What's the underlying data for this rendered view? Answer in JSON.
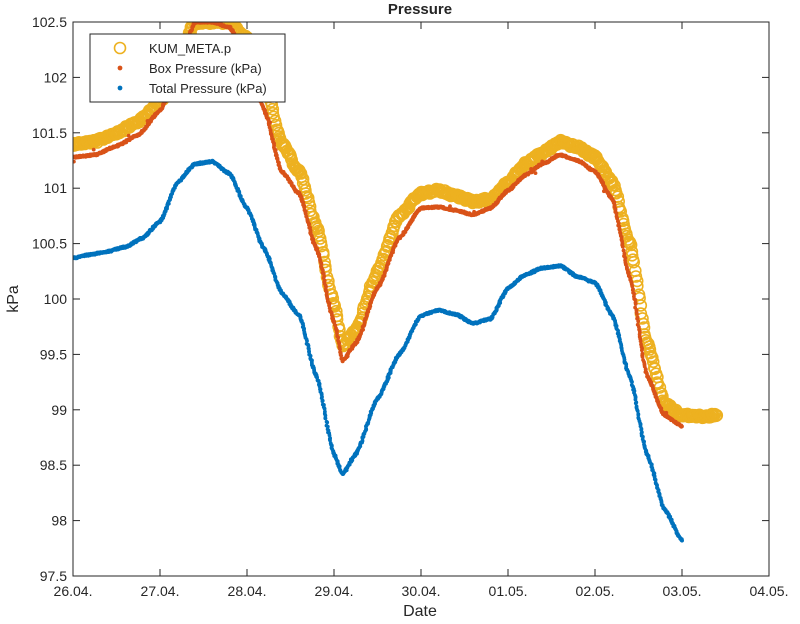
{
  "chart_data": {
    "type": "scatter",
    "title": "Pressure",
    "xlabel": "Date",
    "ylabel": "kPa",
    "x_unit": "day",
    "xlim": [
      "26.04.",
      "04.05."
    ],
    "ylim": [
      97.5,
      102.5
    ],
    "x_ticks": [
      "26.04.",
      "27.04.",
      "28.04.",
      "29.04.",
      "30.04.",
      "01.05.",
      "02.05.",
      "03.05.",
      "04.05."
    ],
    "y_ticks": [
      "97.5",
      "98",
      "98.5",
      "99",
      "99.5",
      "100",
      "100.5",
      "101",
      "101.5",
      "102",
      "102.5"
    ],
    "grid": false,
    "legend_position": "top-left",
    "series": [
      {
        "name": "KUM_META.p",
        "marker": "circle",
        "color": "#EDB120",
        "x": [
          "26.04. 00:00",
          "26.04. 06:00",
          "26.04. 12:00",
          "26.04. 18:00",
          "27.04. 00:00",
          "27.04. 04:48",
          "27.04. 09:36",
          "27.04. 14:24",
          "27.04. 19:12",
          "28.04. 00:00",
          "28.04. 04:48",
          "28.04. 09:36",
          "28.04. 14:24",
          "28.04. 19:12",
          "29.04. 00:00",
          "29.04. 02:24",
          "29.04. 06:00",
          "29.04. 12:00",
          "29.04. 18:00",
          "30.04. 00:00",
          "30.04. 04:48",
          "30.04. 09:36",
          "30.04. 14:24",
          "30.04. 19:12",
          "01.05. 00:00",
          "01.05. 04:48",
          "01.05. 09:36",
          "01.05. 14:24",
          "01.05. 19:12",
          "02.05. 00:00",
          "02.05. 04:48",
          "02.05. 09:36",
          "02.05. 14:24",
          "02.05. 19:12",
          "03.05. 00:00",
          "03.05. 06:00",
          "03.05. 09:36"
        ],
        "y": [
          101.4,
          101.42,
          101.5,
          101.6,
          101.78,
          102.1,
          102.5,
          102.5,
          102.5,
          102.35,
          101.95,
          101.4,
          101.15,
          100.65,
          99.95,
          99.58,
          99.72,
          100.25,
          100.75,
          100.95,
          100.98,
          100.93,
          100.88,
          100.9,
          101.05,
          101.22,
          101.32,
          101.42,
          101.37,
          101.28,
          101.05,
          100.5,
          99.6,
          99.05,
          98.95,
          98.94,
          98.95
        ]
      },
      {
        "name": "Box Pressure (kPa)",
        "marker": "dot",
        "color": "#D95319",
        "x": [
          "26.04. 00:00",
          "26.04. 06:00",
          "26.04. 12:00",
          "26.04. 18:00",
          "27.04. 00:00",
          "27.04. 04:48",
          "27.04. 09:36",
          "27.04. 14:24",
          "27.04. 19:12",
          "28.04. 00:00",
          "28.04. 04:48",
          "28.04. 09:36",
          "28.04. 14:24",
          "28.04. 19:12",
          "29.04. 00:00",
          "29.04. 02:24",
          "29.04. 06:00",
          "29.04. 12:00",
          "29.04. 18:00",
          "30.04. 00:00",
          "30.04. 04:48",
          "30.04. 09:36",
          "30.04. 14:24",
          "30.04. 19:12",
          "01.05. 00:00",
          "01.05. 04:48",
          "01.05. 09:36",
          "01.05. 14:24",
          "01.05. 19:12",
          "02.05. 00:00",
          "02.05. 04:48",
          "02.05. 09:36",
          "02.05. 14:24",
          "02.05. 19:12",
          "03.05. 00:00"
        ],
        "y": [
          101.28,
          101.3,
          101.38,
          101.48,
          101.7,
          102.05,
          102.5,
          102.5,
          102.45,
          102.2,
          101.7,
          101.15,
          100.95,
          100.45,
          99.8,
          99.44,
          99.6,
          100.1,
          100.55,
          100.82,
          100.83,
          100.8,
          100.76,
          100.82,
          100.98,
          101.12,
          101.22,
          101.3,
          101.25,
          101.15,
          100.9,
          100.2,
          99.3,
          98.95,
          98.85
        ]
      },
      {
        "name": "Total Pressure (kPa)",
        "marker": "dot",
        "color": "#0072BD",
        "x": [
          "26.04. 00:00",
          "26.04. 04:48",
          "26.04. 09:36",
          "26.04. 14:24",
          "26.04. 19:12",
          "27.04. 00:00",
          "27.04. 04:48",
          "27.04. 09:36",
          "27.04. 14:24",
          "27.04. 19:12",
          "28.04. 00:00",
          "28.04. 04:48",
          "28.04. 09:36",
          "28.04. 14:24",
          "28.04. 19:12",
          "29.04. 00:00",
          "29.04. 02:24",
          "29.04. 06:00",
          "29.04. 12:00",
          "29.04. 18:00",
          "30.04. 00:00",
          "30.04. 04:48",
          "30.04. 09:36",
          "30.04. 14:24",
          "30.04. 19:12",
          "01.05. 00:00",
          "01.05. 04:48",
          "01.05. 09:36",
          "01.05. 14:24",
          "01.05. 19:12",
          "02.05. 00:00",
          "02.05. 04:48",
          "02.05. 09:36",
          "02.05. 14:24",
          "02.05. 19:12",
          "03.05. 00:00"
        ],
        "y": [
          100.37,
          100.4,
          100.43,
          100.47,
          100.55,
          100.7,
          101.05,
          101.22,
          101.24,
          101.13,
          100.82,
          100.45,
          100.05,
          99.85,
          99.3,
          98.6,
          98.42,
          98.6,
          99.1,
          99.5,
          99.85,
          99.9,
          99.86,
          99.78,
          99.82,
          100.1,
          100.22,
          100.28,
          100.3,
          100.2,
          100.15,
          99.85,
          99.3,
          98.6,
          98.1,
          97.82
        ]
      }
    ]
  }
}
